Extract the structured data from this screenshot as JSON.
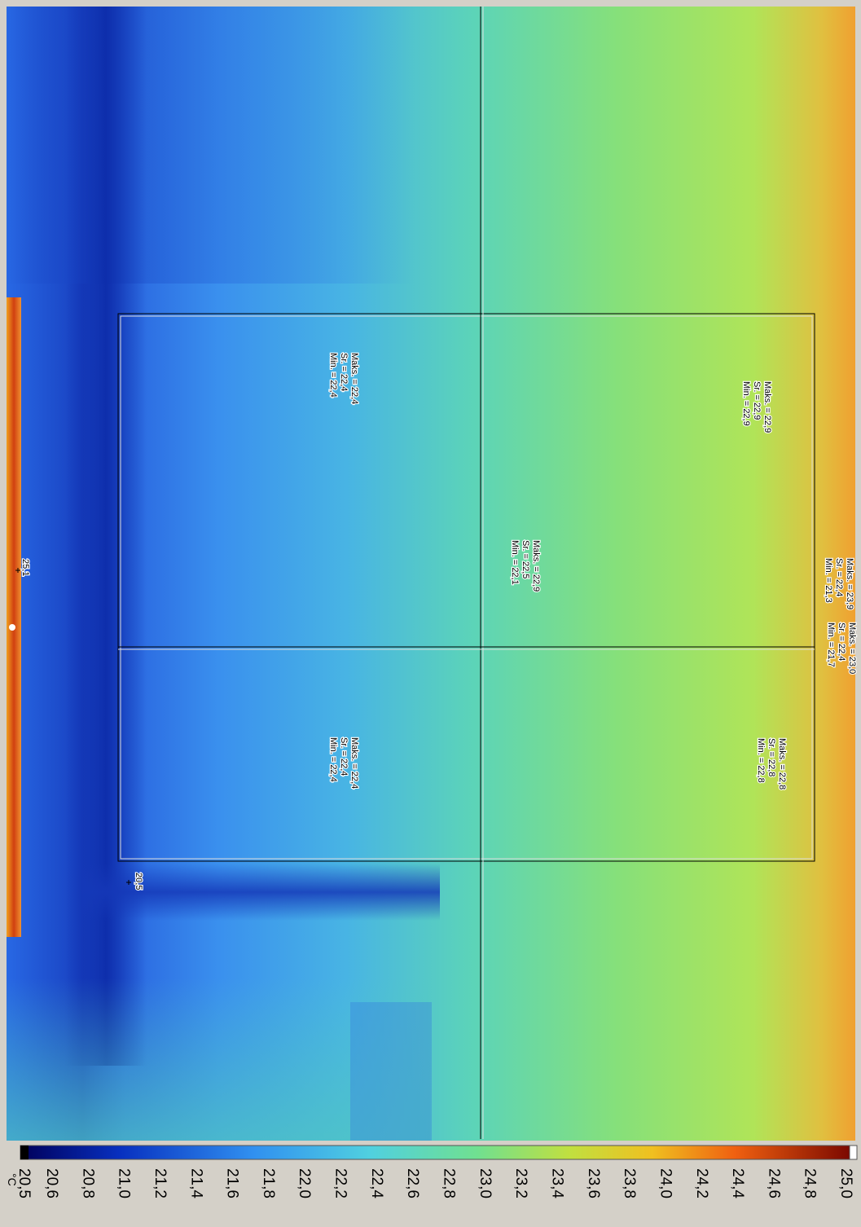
{
  "image": {
    "spots": [
      {
        "label": "25,1"
      },
      {
        "label": "20,5"
      }
    ],
    "areas": [
      {
        "lines": [
          "Maks. = 22,4",
          "Sr. = 22,4",
          "Min. = 22,4"
        ]
      },
      {
        "lines": [
          "Maks. = 22,9",
          "Sr. = 22,9",
          "Min. = 22,9"
        ]
      },
      {
        "lines": [
          "Maks. = 22,4",
          "Sr. = 22,4",
          "Min. = 22,4"
        ]
      },
      {
        "lines": [
          "Maks. = 22,8",
          "Sr. = 22,8",
          "Min. = 22,8"
        ]
      },
      {
        "lines": [
          "Maks. = 22,9",
          "Sr. = 22,5",
          "Min. = 22,1"
        ]
      },
      {
        "lines": [
          "Maks. = 23,9",
          "Sr. = 22,4",
          "Min. = 21,3"
        ]
      },
      {
        "lines": [
          "Maks. = 23,0",
          "Sr. = 22,4",
          "Min. = 21,7"
        ]
      }
    ]
  },
  "colorbar": {
    "unit": "°C",
    "ticks": [
      "20,5",
      "20,6",
      "20,8",
      "21,0",
      "21,2",
      "21,4",
      "21,6",
      "21,8",
      "22,0",
      "22,2",
      "22,4",
      "22,6",
      "22,8",
      "23,0",
      "23,2",
      "23,4",
      "23,6",
      "23,8",
      "24,0",
      "24,2",
      "24,4",
      "24,6",
      "24,8",
      "25,0"
    ]
  }
}
